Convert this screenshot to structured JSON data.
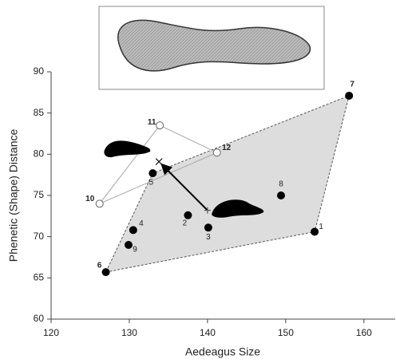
{
  "chart_data": {
    "type": "scatter",
    "x_label": "Aedeagus Size",
    "y_label": "Phenetic (Shape) Distance",
    "xlim": [
      120,
      164
    ],
    "ylim": [
      60,
      90
    ],
    "xticks": [
      120,
      130,
      140,
      150,
      160
    ],
    "yticks": [
      60,
      65,
      70,
      75,
      80,
      85,
      90
    ],
    "series": [
      {
        "color": "#000000",
        "labels": [
          "1",
          "2",
          "3",
          "4",
          "5",
          "6",
          "7",
          "8",
          "9"
        ],
        "x": [
          153.7,
          137.5,
          140.1,
          130.5,
          133.0,
          127.0,
          158.1,
          149.4,
          129.9
        ],
        "y": [
          70.6,
          72.6,
          71.1,
          70.8,
          77.7,
          65.7,
          87.1,
          75.0,
          69.0
        ]
      },
      {
        "color": "#ffffff",
        "labels": [
          "10",
          "11",
          "12"
        ],
        "x": [
          126.2,
          133.9,
          141.2
        ],
        "y": [
          74.0,
          83.5,
          80.2
        ]
      }
    ],
    "centroids": {
      "x": [
        133.8,
        140.0
      ],
      "y": [
        79.1,
        73.2
      ]
    }
  }
}
